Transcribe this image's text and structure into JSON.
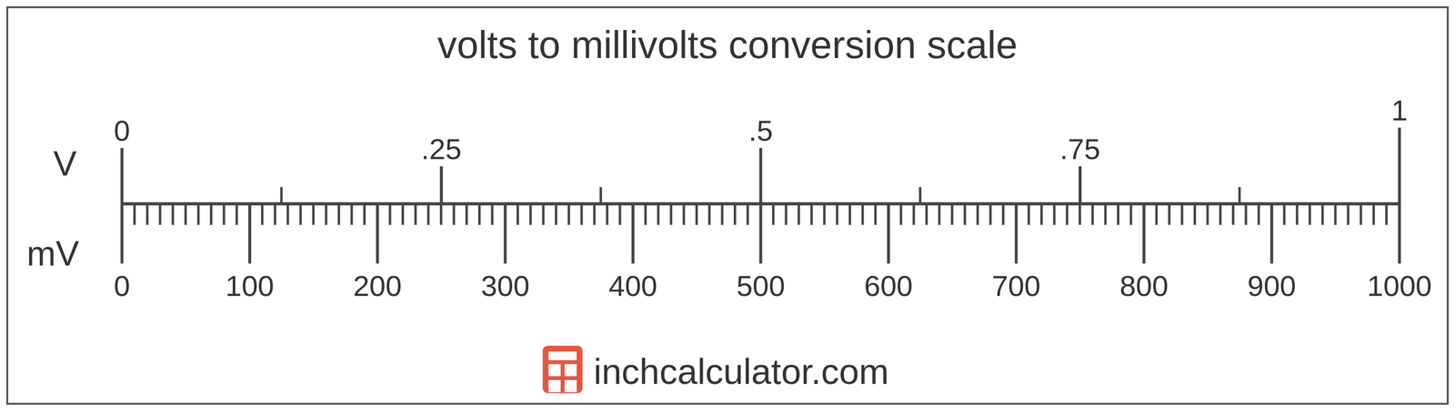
{
  "chart_data": {
    "type": "conversion_scale",
    "title": "volts to millivolts conversion scale",
    "axes": [
      {
        "label": "V",
        "xlim": [
          0,
          1
        ],
        "xticks": [
          0,
          {
            "value": 0.25,
            "label": ".25"
          },
          {
            "value": 0.5,
            "label": ".5"
          },
          {
            "value": 0.75,
            "label": ".75"
          },
          1
        ],
        "minor_ticks": [
          0.125,
          0.375,
          0.625,
          0.875
        ]
      },
      {
        "label": "mV",
        "xlim": [
          0,
          1000
        ],
        "xticks": [
          0,
          100,
          200,
          300,
          400,
          500,
          600,
          700,
          800,
          900,
          1000
        ],
        "minor_ticks": [
          10,
          20,
          30,
          40,
          50,
          60,
          70,
          80,
          90,
          110,
          120,
          130,
          140,
          150,
          160,
          170,
          180,
          190,
          210,
          220,
          230,
          240,
          250,
          260,
          270,
          280,
          290,
          310,
          320,
          330,
          340,
          350,
          360,
          370,
          380,
          390,
          410,
          420,
          430,
          440,
          450,
          460,
          470,
          480,
          490,
          510,
          520,
          530,
          540,
          550,
          560,
          570,
          580,
          590,
          610,
          620,
          630,
          640,
          650,
          660,
          670,
          680,
          690,
          710,
          720,
          730,
          740,
          750,
          760,
          770,
          780,
          790,
          810,
          820,
          830,
          840,
          850,
          860,
          870,
          880,
          890,
          910,
          920,
          930,
          940,
          950,
          960,
          970,
          980,
          990
        ]
      }
    ]
  },
  "source": "inchcalculator.com"
}
